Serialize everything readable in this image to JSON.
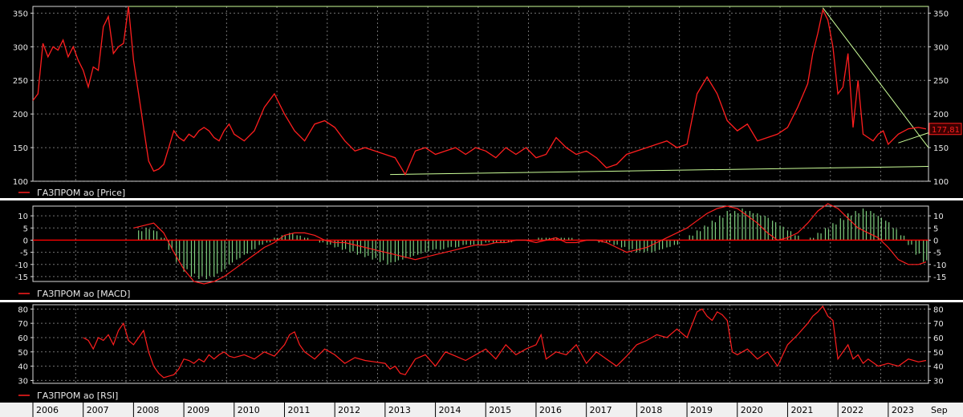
{
  "colors": {
    "background": "#000000",
    "frame": "#d8d8d8",
    "grid": "#bfbfbf",
    "price_line": "#ff1e1e",
    "trendline": "#ccff99",
    "macd_hist": "#7fcf7f",
    "macd_zero": "#ff0000",
    "text": "#e8e8e8",
    "separator": "#ffffff",
    "axis_band": "#f0f0f0",
    "axis_band_text": "#000000",
    "badge_bg": "#3a0000"
  },
  "time_axis": {
    "labels": [
      "2006",
      "2007",
      "2008",
      "2009",
      "2010",
      "2011",
      "2012",
      "2013",
      "2014",
      "2015",
      "2016",
      "2017",
      "2018",
      "2019",
      "2020",
      "2021",
      "2022",
      "2023"
    ],
    "end_label": "Sep"
  },
  "chart_data": [
    {
      "type": "line",
      "legend": "ГАЗПРОМ ао [Price]",
      "ylim": [
        100,
        360
      ],
      "y_ticks": [
        100,
        150,
        200,
        250,
        300,
        350
      ],
      "last_value_label": "177,81",
      "x": [
        2006.0,
        2006.1,
        2006.2,
        2006.3,
        2006.4,
        2006.5,
        2006.6,
        2006.7,
        2006.8,
        2006.9,
        2007.0,
        2007.1,
        2007.2,
        2007.3,
        2007.4,
        2007.5,
        2007.6,
        2007.7,
        2007.8,
        2007.9,
        2008.0,
        2008.1,
        2008.2,
        2008.3,
        2008.4,
        2008.5,
        2008.6,
        2008.7,
        2008.8,
        2008.9,
        2009.0,
        2009.1,
        2009.2,
        2009.3,
        2009.4,
        2009.5,
        2009.6,
        2009.7,
        2009.8,
        2009.9,
        2010.0,
        2010.2,
        2010.4,
        2010.6,
        2010.8,
        2011.0,
        2011.2,
        2011.4,
        2011.6,
        2011.8,
        2012.0,
        2012.2,
        2012.4,
        2012.6,
        2012.8,
        2013.0,
        2013.2,
        2013.4,
        2013.6,
        2013.8,
        2014.0,
        2014.2,
        2014.4,
        2014.6,
        2014.8,
        2015.0,
        2015.2,
        2015.4,
        2015.6,
        2015.8,
        2016.0,
        2016.2,
        2016.4,
        2016.6,
        2016.8,
        2017.0,
        2017.2,
        2017.4,
        2017.6,
        2017.8,
        2018.0,
        2018.2,
        2018.4,
        2018.6,
        2018.8,
        2019.0,
        2019.2,
        2019.4,
        2019.6,
        2019.8,
        2020.0,
        2020.2,
        2020.4,
        2020.6,
        2020.8,
        2021.0,
        2021.2,
        2021.4,
        2021.5,
        2021.6,
        2021.7,
        2021.8,
        2021.9,
        2022.0,
        2022.1,
        2022.2,
        2022.3,
        2022.4,
        2022.5,
        2022.6,
        2022.7,
        2022.8,
        2022.9,
        2023.0,
        2023.2,
        2023.4,
        2023.6,
        2023.75
      ],
      "values": [
        220,
        230,
        305,
        285,
        300,
        295,
        310,
        285,
        300,
        280,
        265,
        240,
        270,
        265,
        330,
        345,
        290,
        300,
        305,
        360,
        280,
        230,
        180,
        130,
        115,
        118,
        125,
        150,
        175,
        165,
        160,
        170,
        165,
        175,
        180,
        175,
        165,
        160,
        175,
        185,
        170,
        160,
        175,
        210,
        230,
        200,
        175,
        160,
        185,
        190,
        180,
        160,
        145,
        150,
        145,
        140,
        135,
        110,
        145,
        150,
        140,
        145,
        150,
        140,
        150,
        145,
        135,
        150,
        140,
        150,
        135,
        140,
        165,
        150,
        140,
        145,
        135,
        120,
        125,
        140,
        145,
        150,
        155,
        160,
        150,
        155,
        230,
        255,
        230,
        190,
        175,
        185,
        160,
        165,
        170,
        180,
        210,
        245,
        290,
        320,
        355,
        340,
        300,
        230,
        240,
        290,
        180,
        250,
        170,
        165,
        160,
        170,
        175,
        155,
        170,
        178,
        180,
        177.81
      ]
    },
    {
      "type": "bar",
      "legend": "ГАЗПРОМ ао [MACD]",
      "ylim": [
        -17,
        14
      ],
      "y_ticks": [
        -15,
        -10,
        -5,
        0,
        5,
        10
      ],
      "histogram": {
        "x": [
          2008.1,
          2008.25,
          2008.4,
          2008.55,
          2008.7,
          2008.85,
          2009.0,
          2009.15,
          2009.3,
          2009.45,
          2009.6,
          2009.75,
          2009.9,
          2010.05,
          2010.2,
          2010.35,
          2010.5,
          2010.65,
          2010.8,
          2010.95,
          2011.1,
          2011.25,
          2011.4,
          2011.55,
          2011.7,
          2011.85,
          2012.0,
          2012.15,
          2012.3,
          2012.45,
          2012.6,
          2012.75,
          2012.9,
          2013.05,
          2013.2,
          2013.35,
          2013.5,
          2013.65,
          2013.8,
          2013.95,
          2014.1,
          2014.25,
          2014.4,
          2014.55,
          2014.7,
          2014.85,
          2015.0,
          2015.15,
          2015.3,
          2015.45,
          2015.6,
          2015.75,
          2015.9,
          2016.05,
          2016.2,
          2016.35,
          2016.5,
          2016.65,
          2016.8,
          2016.95,
          2017.1,
          2017.25,
          2017.4,
          2017.55,
          2017.7,
          2017.85,
          2018.0,
          2018.15,
          2018.3,
          2018.45,
          2018.6,
          2018.75,
          2018.9,
          2019.05,
          2019.2,
          2019.35,
          2019.5,
          2019.65,
          2019.8,
          2019.95,
          2020.1,
          2020.25,
          2020.4,
          2020.55,
          2020.7,
          2020.85,
          2021.0,
          2021.15,
          2021.3,
          2021.45,
          2021.6,
          2021.75,
          2021.9,
          2022.05,
          2022.2,
          2022.35,
          2022.5,
          2022.65,
          2022.8,
          2022.95,
          2023.1,
          2023.25,
          2023.4,
          2023.55,
          2023.7
        ],
        "values": [
          4,
          5,
          4,
          1,
          -4,
          -9,
          -13,
          -15,
          -16,
          -16,
          -15,
          -13,
          -10,
          -8,
          -6,
          -4,
          -2,
          -1,
          1,
          2,
          3,
          2,
          1,
          0,
          -1,
          -2,
          -3,
          -4,
          -5,
          -6,
          -7,
          -8,
          -9,
          -10,
          -9,
          -8,
          -7,
          -6,
          -5,
          -4,
          -4,
          -3,
          -3,
          -2,
          -2,
          -2,
          -1,
          -1,
          -1,
          -1,
          0,
          0,
          0,
          1,
          1,
          1,
          1,
          1,
          0,
          0,
          0,
          -1,
          -1,
          -2,
          -3,
          -4,
          -5,
          -5,
          -5,
          -4,
          -3,
          -2,
          0,
          2,
          4,
          6,
          8,
          10,
          12,
          12,
          13,
          12,
          11,
          10,
          8,
          6,
          4,
          2,
          0,
          1,
          3,
          5,
          7,
          9,
          11,
          12,
          13,
          12,
          10,
          8,
          5,
          2,
          -2,
          -6,
          -9
        ]
      },
      "macd_line": {
        "x": [
          2008.0,
          2008.2,
          2008.4,
          2008.6,
          2008.8,
          2009.0,
          2009.2,
          2009.4,
          2009.6,
          2009.8,
          2010.0,
          2010.2,
          2010.4,
          2010.6,
          2010.8,
          2011.0,
          2011.2,
          2011.4,
          2011.6,
          2011.8,
          2012.0,
          2012.2,
          2012.4,
          2012.6,
          2012.8,
          2013.0,
          2013.2,
          2013.4,
          2013.6,
          2013.8,
          2014.0,
          2014.2,
          2014.4,
          2014.6,
          2014.8,
          2015.0,
          2015.2,
          2015.4,
          2015.6,
          2015.8,
          2016.0,
          2016.2,
          2016.4,
          2016.6,
          2016.8,
          2017.0,
          2017.2,
          2017.4,
          2017.6,
          2017.8,
          2018.0,
          2018.2,
          2018.4,
          2018.6,
          2018.8,
          2019.0,
          2019.2,
          2019.4,
          2019.6,
          2019.8,
          2020.0,
          2020.2,
          2020.4,
          2020.6,
          2020.8,
          2021.0,
          2021.2,
          2021.4,
          2021.6,
          2021.8,
          2022.0,
          2022.2,
          2022.4,
          2022.6,
          2022.8,
          2023.0,
          2023.2,
          2023.4,
          2023.6,
          2023.75
        ],
        "values": [
          5,
          6,
          7,
          3,
          -5,
          -12,
          -17,
          -18,
          -17,
          -15,
          -12,
          -9,
          -6,
          -3,
          -1,
          2,
          3,
          3,
          2,
          0,
          -1,
          -1,
          -2,
          -3,
          -4,
          -5,
          -6,
          -7,
          -8,
          -7,
          -6,
          -5,
          -4,
          -3,
          -2,
          -2,
          -1,
          -1,
          0,
          0,
          -1,
          0,
          1,
          -1,
          -1,
          0,
          0,
          -1,
          -3,
          -5,
          -4,
          -3,
          -1,
          1,
          3,
          5,
          8,
          11,
          13,
          14,
          13,
          10,
          7,
          3,
          0,
          1,
          3,
          7,
          12,
          15,
          13,
          9,
          5,
          3,
          1,
          -3,
          -8,
          -10,
          -10,
          -9
        ]
      }
    },
    {
      "type": "line",
      "legend": "ГАЗПРОМ ао [RSI]",
      "ylim": [
        28,
        83
      ],
      "y_ticks": [
        30,
        40,
        50,
        60,
        70,
        80
      ],
      "x": [
        2007.0,
        2007.1,
        2007.2,
        2007.3,
        2007.4,
        2007.5,
        2007.6,
        2007.7,
        2007.8,
        2007.9,
        2008.0,
        2008.1,
        2008.2,
        2008.3,
        2008.4,
        2008.5,
        2008.6,
        2008.7,
        2008.8,
        2008.9,
        2009.0,
        2009.1,
        2009.2,
        2009.3,
        2009.4,
        2009.5,
        2009.6,
        2009.7,
        2009.8,
        2009.9,
        2010.0,
        2010.2,
        2010.4,
        2010.6,
        2010.8,
        2011.0,
        2011.1,
        2011.2,
        2011.3,
        2011.4,
        2011.6,
        2011.8,
        2012.0,
        2012.2,
        2012.4,
        2012.6,
        2012.8,
        2013.0,
        2013.1,
        2013.2,
        2013.3,
        2013.4,
        2013.6,
        2013.8,
        2014.0,
        2014.2,
        2014.4,
        2014.6,
        2014.8,
        2015.0,
        2015.2,
        2015.4,
        2015.6,
        2015.8,
        2016.0,
        2016.1,
        2016.2,
        2016.4,
        2016.6,
        2016.8,
        2017.0,
        2017.2,
        2017.4,
        2017.6,
        2017.8,
        2018.0,
        2018.2,
        2018.4,
        2018.6,
        2018.8,
        2019.0,
        2019.2,
        2019.3,
        2019.4,
        2019.5,
        2019.6,
        2019.7,
        2019.8,
        2019.9,
        2020.0,
        2020.2,
        2020.4,
        2020.6,
        2020.8,
        2021.0,
        2021.2,
        2021.4,
        2021.5,
        2021.6,
        2021.7,
        2021.8,
        2021.9,
        2022.0,
        2022.1,
        2022.2,
        2022.3,
        2022.4,
        2022.5,
        2022.6,
        2022.8,
        2023.0,
        2023.2,
        2023.4,
        2023.6,
        2023.75
      ],
      "values": [
        60,
        58,
        52,
        60,
        58,
        62,
        55,
        65,
        70,
        58,
        55,
        60,
        65,
        50,
        40,
        35,
        32,
        33,
        34,
        38,
        45,
        44,
        42,
        45,
        43,
        48,
        45,
        48,
        50,
        47,
        46,
        48,
        45,
        50,
        47,
        55,
        62,
        64,
        55,
        50,
        45,
        52,
        48,
        42,
        46,
        44,
        43,
        42,
        38,
        40,
        35,
        34,
        45,
        48,
        40,
        50,
        47,
        44,
        48,
        52,
        45,
        55,
        48,
        52,
        55,
        62,
        45,
        50,
        48,
        55,
        42,
        50,
        45,
        40,
        47,
        55,
        58,
        62,
        60,
        66,
        60,
        78,
        80,
        75,
        72,
        78,
        76,
        72,
        50,
        48,
        52,
        45,
        50,
        40,
        55,
        62,
        70,
        75,
        78,
        82,
        75,
        72,
        45,
        50,
        55,
        45,
        48,
        42,
        45,
        40,
        42,
        40,
        45,
        43,
        44
      ]
    }
  ]
}
